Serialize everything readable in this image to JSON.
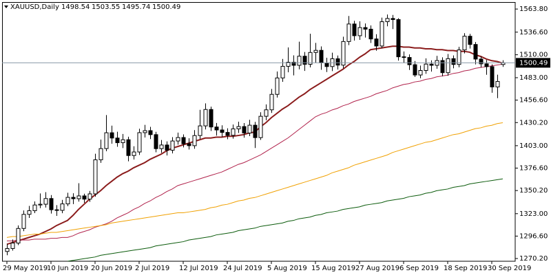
{
  "chart_data": {
    "type": "candlestick",
    "symbol": "XAUUSD,Daily",
    "categories": [
      "29 May 2019",
      null,
      null,
      null,
      null,
      null,
      null,
      null,
      "10 Jun 2019",
      null,
      null,
      null,
      null,
      null,
      null,
      null,
      "20 Jun 2019",
      null,
      null,
      null,
      null,
      null,
      null,
      null,
      "2 Jul 2019",
      null,
      null,
      null,
      null,
      null,
      null,
      null,
      "12 Jul 2019",
      null,
      null,
      null,
      null,
      null,
      null,
      null,
      "24 Jul 2019",
      null,
      null,
      null,
      null,
      null,
      null,
      null,
      "5 Aug 2019",
      null,
      null,
      null,
      null,
      null,
      null,
      null,
      "15 Aug 2019",
      null,
      null,
      null,
      null,
      null,
      null,
      null,
      "27 Aug 2019",
      null,
      null,
      null,
      null,
      null,
      null,
      null,
      "6 Sep 2019",
      null,
      null,
      null,
      null,
      null,
      null,
      null,
      "18 Sep 2019",
      null,
      null,
      null,
      null,
      null,
      null,
      null,
      "30 Sep 2019",
      null,
      null
    ],
    "open": [
      1278.5,
      1282.0,
      1288.4,
      1305.6,
      1322.2,
      1326.5,
      1333.2,
      1334.1,
      1340.8,
      1327.6,
      1326.9,
      1334.5,
      1342.2,
      1340.6,
      1343.9,
      1340.1,
      1346.3,
      1386.4,
      1399.6,
      1418.2,
      1412.0,
      1406.5,
      1410.0,
      1391.4,
      1395.6,
      1418.3,
      1420.7,
      1416.0,
      1399.5,
      1403.8,
      1397.7,
      1408.5,
      1412.6,
      1405.2,
      1403.0,
      1414.9,
      1426.3,
      1445.6,
      1425.0,
      1421.5,
      1418.6,
      1415.2,
      1422.8,
      1425.5,
      1417.9,
      1427.1,
      1412.5,
      1437.6,
      1445.2,
      1463.4,
      1482.7,
      1496.4,
      1501.2,
      1497.6,
      1508.3,
      1498.8,
      1512.7,
      1515.2,
      1500.4,
      1496.1,
      1505.3,
      1497.8,
      1525.6,
      1546.2,
      1532.4,
      1542.0,
      1540.1,
      1528.6,
      1520.3,
      1548.9,
      1552.7,
      1551.4,
      1507.6,
      1506.8,
      1498.3,
      1486.2,
      1491.5,
      1499.0,
      1497.6,
      1503.2,
      1488.9,
      1505.4,
      1498.6,
      1515.7,
      1531.8,
      1522.1,
      1504.9,
      1499.3,
      1496.0,
      1472.1,
      1498.54
    ],
    "high": [
      1287.3,
      1292.6,
      1309.2,
      1326.8,
      1332.1,
      1337.4,
      1346.8,
      1348.3,
      1344.9,
      1333.0,
      1339.2,
      1347.6,
      1347.0,
      1358.8,
      1346.5,
      1349.7,
      1393.5,
      1410.2,
      1439.0,
      1426.6,
      1419.4,
      1416.8,
      1413.5,
      1402.3,
      1422.9,
      1427.5,
      1425.2,
      1419.3,
      1409.7,
      1408.1,
      1413.0,
      1418.4,
      1416.3,
      1411.7,
      1421.3,
      1445.2,
      1452.8,
      1448.9,
      1429.7,
      1427.0,
      1423.4,
      1427.9,
      1431.2,
      1429.6,
      1433.5,
      1431.0,
      1442.4,
      1451.6,
      1469.8,
      1490.3,
      1505.1,
      1518.6,
      1509.3,
      1525.4,
      1513.2,
      1534.7,
      1524.0,
      1519.8,
      1506.5,
      1512.4,
      1509.1,
      1531.2,
      1555.6,
      1550.0,
      1549.3,
      1546.8,
      1544.5,
      1534.2,
      1553.7,
      1557.3,
      1556.8,
      1553.0,
      1513.9,
      1510.4,
      1502.6,
      1497.3,
      1505.8,
      1503.4,
      1508.7,
      1507.0,
      1510.9,
      1509.2,
      1519.3,
      1535.4,
      1534.6,
      1525.0,
      1508.2,
      1503.8,
      1498.7,
      1486.5,
      1503.55
    ],
    "low": [
      1274.1,
      1279.5,
      1286.0,
      1302.4,
      1318.0,
      1323.6,
      1329.5,
      1330.2,
      1323.1,
      1320.4,
      1323.5,
      1331.8,
      1334.3,
      1337.2,
      1335.8,
      1336.9,
      1343.0,
      1382.8,
      1396.4,
      1405.3,
      1401.7,
      1400.2,
      1384.6,
      1386.7,
      1392.1,
      1412.6,
      1410.8,
      1395.2,
      1394.6,
      1391.5,
      1393.9,
      1404.2,
      1401.0,
      1398.5,
      1399.4,
      1411.0,
      1422.1,
      1420.3,
      1414.8,
      1413.2,
      1410.6,
      1411.3,
      1418.0,
      1412.4,
      1414.2,
      1400.3,
      1409.8,
      1433.0,
      1441.5,
      1459.6,
      1478.2,
      1489.4,
      1485.7,
      1492.8,
      1491.0,
      1495.1,
      1500.6,
      1492.3,
      1489.7,
      1490.8,
      1492.6,
      1494.0,
      1521.3,
      1526.7,
      1527.5,
      1530.2,
      1523.9,
      1514.8,
      1517.6,
      1543.5,
      1540.2,
      1503.1,
      1500.7,
      1492.1,
      1483.9,
      1482.4,
      1487.6,
      1490.2,
      1493.5,
      1484.6,
      1485.3,
      1494.0,
      1495.2,
      1511.6,
      1517.3,
      1498.7,
      1495.1,
      1486.4,
      1465.3,
      1458.9,
      1495.74
    ],
    "close": [
      1282.0,
      1288.4,
      1305.6,
      1322.2,
      1326.5,
      1333.2,
      1334.1,
      1340.8,
      1327.6,
      1326.9,
      1334.5,
      1342.2,
      1340.6,
      1343.9,
      1340.1,
      1346.3,
      1386.4,
      1399.6,
      1418.2,
      1412.0,
      1406.5,
      1410.0,
      1391.4,
      1395.6,
      1418.3,
      1420.7,
      1416.0,
      1399.5,
      1403.8,
      1397.7,
      1408.5,
      1412.6,
      1405.2,
      1403.0,
      1414.9,
      1426.3,
      1445.6,
      1425.0,
      1421.5,
      1418.6,
      1415.2,
      1422.8,
      1425.5,
      1417.9,
      1427.1,
      1412.5,
      1437.6,
      1445.2,
      1463.4,
      1482.7,
      1496.4,
      1501.2,
      1497.6,
      1508.3,
      1498.8,
      1512.7,
      1515.2,
      1500.4,
      1496.1,
      1505.3,
      1497.8,
      1525.6,
      1546.2,
      1532.4,
      1542.0,
      1540.1,
      1528.6,
      1520.3,
      1548.9,
      1552.7,
      1551.4,
      1507.6,
      1506.8,
      1498.3,
      1486.2,
      1491.5,
      1499.0,
      1497.6,
      1503.2,
      1488.9,
      1505.4,
      1498.6,
      1515.7,
      1531.8,
      1522.1,
      1504.9,
      1499.3,
      1496.0,
      1472.1,
      1478.6,
      1500.49
    ],
    "bull_color": "#ffffff",
    "bear_color": "#000000",
    "series": [
      {
        "color": "#8b1c1c",
        "values": [
          1287,
          1289,
          1291,
          1293,
          1295,
          1297,
          1299,
          1302,
          1305,
          1309,
          1312,
          1315,
          1321,
          1328,
          1334,
          1340,
          1345,
          1350,
          1356,
          1361,
          1366,
          1370,
          1373,
          1377,
          1380,
          1383,
          1387,
          1390,
          1393,
          1397,
          1400,
          1402,
          1404,
          1406,
          1408,
          1410,
          1412,
          1412,
          1413,
          1413,
          1414,
          1414,
          1415,
          1416,
          1418,
          1419,
          1425,
          1430,
          1436,
          1441,
          1446,
          1450,
          1455,
          1460,
          1464,
          1469,
          1473,
          1477,
          1481,
          1485,
          1489,
          1493,
          1498,
          1502,
          1507,
          1511,
          1516,
          1517,
          1518,
          1519,
          1520,
          1520,
          1519,
          1519,
          1518,
          1518,
          1517,
          1517,
          1516,
          1516,
          1515,
          1515,
          1514,
          1514,
          1513,
          1510,
          1508,
          1505,
          1503,
          1502,
          1500
        ]
      },
      {
        "color": "#b0204a",
        "values": [
          1291,
          1291,
          1292,
          1292,
          1292,
          1293,
          1293,
          1293,
          1294,
          1294,
          1295,
          1295,
          1297,
          1300,
          1302,
          1304,
          1307,
          1309,
          1311,
          1314,
          1318,
          1321,
          1324,
          1328,
          1331,
          1335,
          1338,
          1342,
          1345,
          1349,
          1352,
          1356,
          1358,
          1360,
          1362,
          1364,
          1366,
          1368,
          1370,
          1372,
          1375,
          1378,
          1381,
          1383,
          1386,
          1389,
          1392,
          1396,
          1400,
          1404,
          1408,
          1412,
          1417,
          1422,
          1427,
          1432,
          1437,
          1440,
          1442,
          1445,
          1447,
          1450,
          1452,
          1455,
          1457,
          1459,
          1461,
          1464,
          1466,
          1468,
          1471,
          1473,
          1475,
          1476,
          1478,
          1479,
          1481,
          1482,
          1484,
          1485,
          1486,
          1488,
          1489,
          1491,
          1492,
          1494,
          1495,
          1496,
          1497,
          1498,
          1499
        ]
      },
      {
        "color": "#f0a000",
        "values": [
          1295,
          1296,
          1296,
          1297,
          1298,
          1299,
          1299,
          1300,
          1301,
          1301,
          1302,
          1303,
          1304,
          1305,
          1306,
          1307,
          1308,
          1309,
          1310,
          1312,
          1313,
          1314,
          1315,
          1316,
          1317,
          1318,
          1319,
          1320,
          1321,
          1322,
          1323,
          1324,
          1324,
          1325,
          1326,
          1327,
          1328,
          1330,
          1331,
          1333,
          1334,
          1336,
          1338,
          1339,
          1341,
          1342,
          1344,
          1346,
          1348,
          1350,
          1352,
          1354,
          1356,
          1358,
          1360,
          1362,
          1364,
          1366,
          1368,
          1371,
          1373,
          1375,
          1377,
          1380,
          1382,
          1384,
          1386,
          1388,
          1390,
          1392,
          1395,
          1397,
          1399,
          1401,
          1403,
          1405,
          1407,
          1408,
          1410,
          1412,
          1414,
          1416,
          1417,
          1419,
          1421,
          1423,
          1424,
          1426,
          1427,
          1429,
          1430
        ]
      },
      {
        "color": "#0a5a0a",
        "values": [
          null,
          null,
          null,
          null,
          null,
          null,
          null,
          null,
          null,
          null,
          null,
          1267,
          1268,
          1269,
          1270,
          1271,
          1272,
          1274,
          1275,
          1276,
          1277,
          1278,
          1279,
          1280,
          1281,
          1282,
          1283,
          1285,
          1286,
          1287,
          1288,
          1289,
          1290,
          1292,
          1293,
          1294,
          1295,
          1296,
          1298,
          1299,
          1300,
          1301,
          1303,
          1304,
          1305,
          1306,
          1308,
          1309,
          1310,
          1311,
          1312,
          1314,
          1315,
          1317,
          1318,
          1319,
          1321,
          1322,
          1324,
          1325,
          1326,
          1328,
          1329,
          1330,
          1331,
          1333,
          1334,
          1335,
          1336,
          1338,
          1339,
          1340,
          1341,
          1343,
          1344,
          1345,
          1347,
          1348,
          1350,
          1351,
          1352,
          1354,
          1355,
          1356,
          1358,
          1359,
          1360,
          1361,
          1362,
          1363,
          1364
        ]
      }
    ],
    "ylim": [
      1267,
      1572
    ],
    "yticks": [
      {
        "value": 1563.8,
        "label": "1563.80"
      },
      {
        "value": 1536.6,
        "label": "1536.60"
      },
      {
        "value": 1510,
        "label": "1510.00"
      },
      {
        "value": 1483,
        "label": "1483.00"
      },
      {
        "value": 1456.6,
        "label": "1456.60"
      },
      {
        "value": 1430.2,
        "label": "1430.20"
      },
      {
        "value": 1403,
        "label": "1403.00"
      },
      {
        "value": 1376.6,
        "label": "1376.60"
      },
      {
        "value": 1350.2,
        "label": "1350.20"
      },
      {
        "value": 1323,
        "label": "1323.00"
      },
      {
        "value": 1296.6,
        "label": "1296.60"
      },
      {
        "value": 1270.2,
        "label": "1270.20"
      }
    ]
  }
}
